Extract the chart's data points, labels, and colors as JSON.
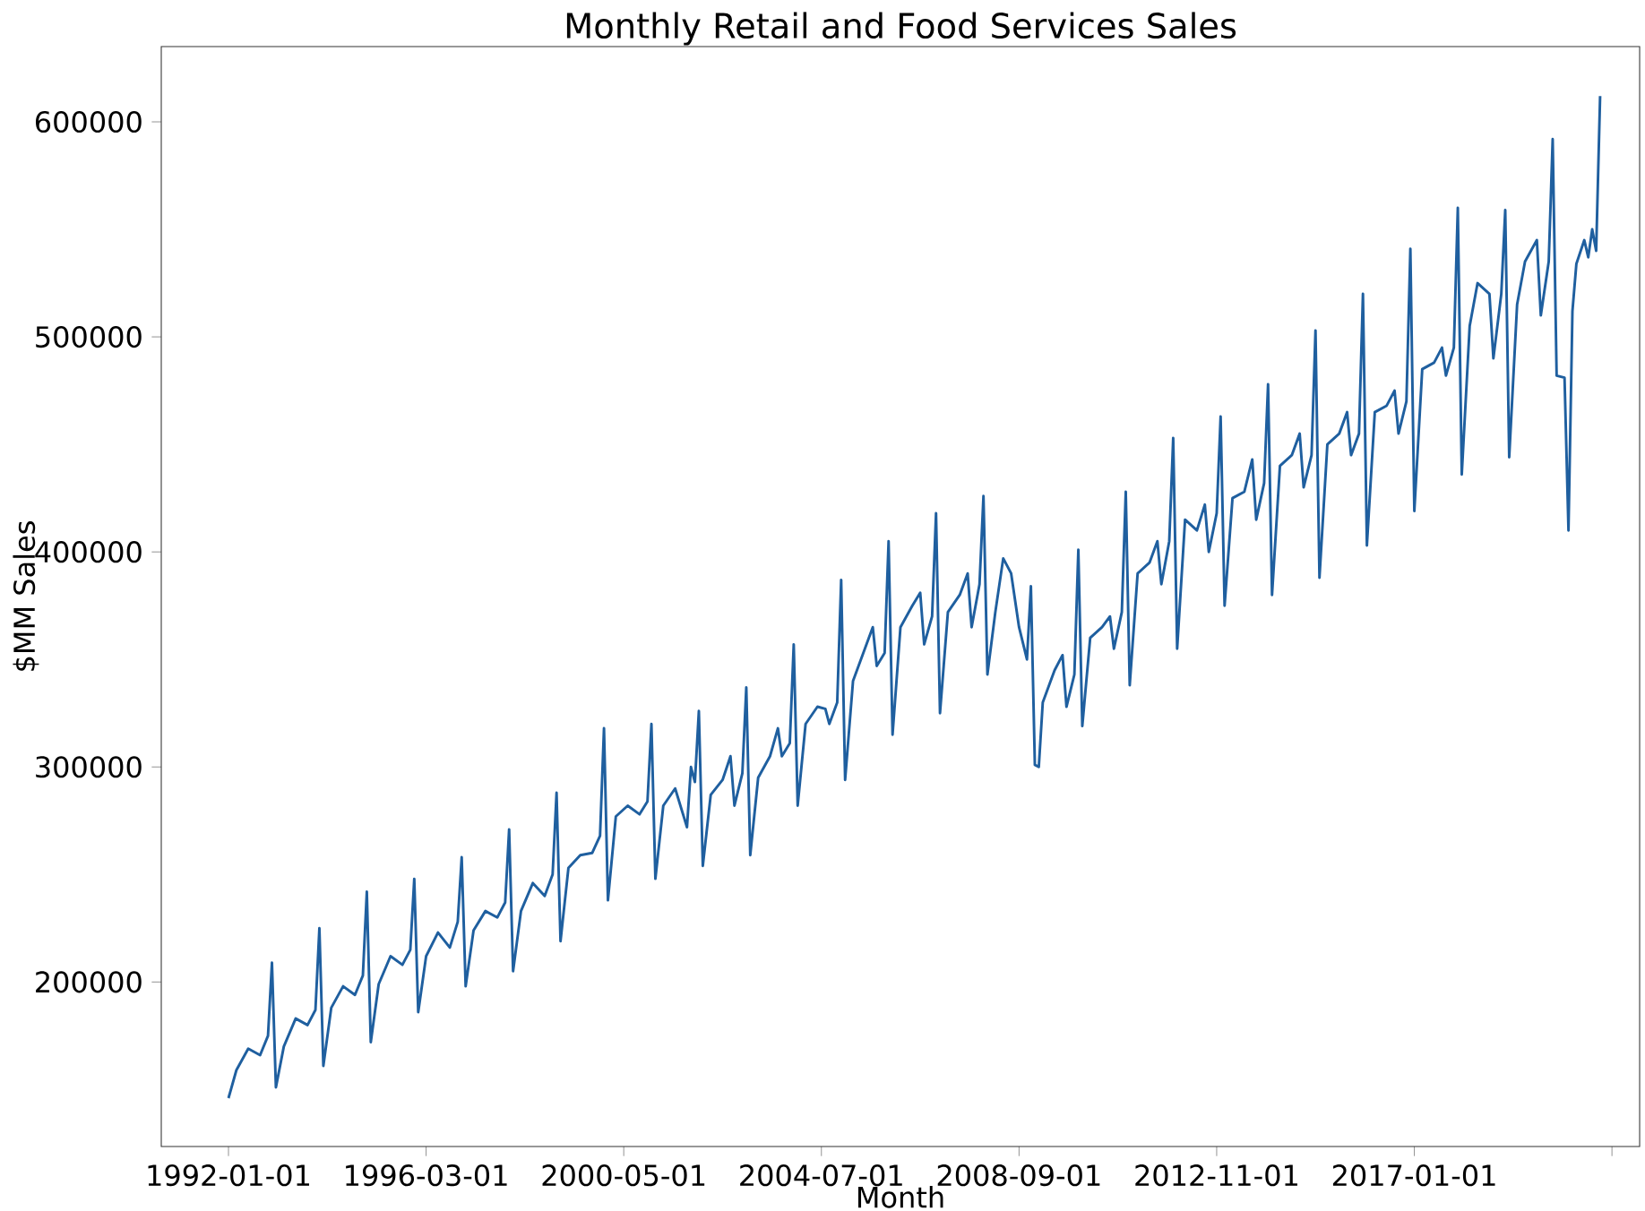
{
  "chart_data": {
    "type": "line",
    "title": "Monthly Retail and Food Services Sales",
    "xlabel": "Month",
    "ylabel": "$MM Sales",
    "x": [
      "1992-01",
      "1992-03",
      "1992-06",
      "1992-09",
      "1992-11",
      "1992-12",
      "1993-01",
      "1993-03",
      "1993-06",
      "1993-09",
      "1993-11",
      "1993-12",
      "1994-01",
      "1994-03",
      "1994-06",
      "1994-09",
      "1994-11",
      "1994-12",
      "1995-01",
      "1995-03",
      "1995-06",
      "1995-09",
      "1995-11",
      "1995-12",
      "1996-01",
      "1996-03",
      "1996-06",
      "1996-09",
      "1996-11",
      "1996-12",
      "1997-01",
      "1997-03",
      "1997-06",
      "1997-09",
      "1997-11",
      "1997-12",
      "1998-01",
      "1998-03",
      "1998-06",
      "1998-09",
      "1998-11",
      "1998-12",
      "1999-01",
      "1999-03",
      "1999-06",
      "1999-09",
      "1999-11",
      "1999-12",
      "2000-01",
      "2000-03",
      "2000-06",
      "2000-09",
      "2000-11",
      "2000-12",
      "2001-01",
      "2001-03",
      "2001-06",
      "2001-09",
      "2001-10",
      "2001-11",
      "2001-12",
      "2002-01",
      "2002-03",
      "2002-06",
      "2002-08",
      "2002-09",
      "2002-11",
      "2002-12",
      "2003-01",
      "2003-03",
      "2003-06",
      "2003-08",
      "2003-09",
      "2003-11",
      "2003-12",
      "2004-01",
      "2004-03",
      "2004-06",
      "2004-08",
      "2004-09",
      "2004-11",
      "2004-12",
      "2005-01",
      "2005-03",
      "2005-06",
      "2005-08",
      "2005-09",
      "2005-11",
      "2005-12",
      "2006-01",
      "2006-03",
      "2006-06",
      "2006-08",
      "2006-09",
      "2006-11",
      "2006-12",
      "2007-01",
      "2007-03",
      "2007-06",
      "2007-08",
      "2007-09",
      "2007-11",
      "2007-12",
      "2008-01",
      "2008-03",
      "2008-05",
      "2008-07",
      "2008-09",
      "2008-11",
      "2008-12",
      "2009-01",
      "2009-02",
      "2009-03",
      "2009-06",
      "2009-08",
      "2009-09",
      "2009-11",
      "2009-12",
      "2010-01",
      "2010-03",
      "2010-06",
      "2010-08",
      "2010-09",
      "2010-11",
      "2010-12",
      "2011-01",
      "2011-03",
      "2011-06",
      "2011-08",
      "2011-09",
      "2011-11",
      "2011-12",
      "2012-01",
      "2012-03",
      "2012-06",
      "2012-08",
      "2012-09",
      "2012-11",
      "2012-12",
      "2013-01",
      "2013-03",
      "2013-06",
      "2013-08",
      "2013-09",
      "2013-11",
      "2013-12",
      "2014-01",
      "2014-03",
      "2014-06",
      "2014-08",
      "2014-09",
      "2014-11",
      "2014-12",
      "2015-01",
      "2015-03",
      "2015-06",
      "2015-08",
      "2015-09",
      "2015-11",
      "2015-12",
      "2016-01",
      "2016-03",
      "2016-06",
      "2016-08",
      "2016-09",
      "2016-11",
      "2016-12",
      "2017-01",
      "2017-03",
      "2017-06",
      "2017-08",
      "2017-09",
      "2017-11",
      "2017-12",
      "2018-01",
      "2018-03",
      "2018-05",
      "2018-08",
      "2018-09",
      "2018-11",
      "2018-12",
      "2019-01",
      "2019-03",
      "2019-05",
      "2019-08",
      "2019-09",
      "2019-11",
      "2019-12",
      "2020-01",
      "2020-03",
      "2020-04",
      "2020-05",
      "2020-06",
      "2020-08",
      "2020-09",
      "2020-10",
      "2020-11",
      "2020-12"
    ],
    "series": [
      {
        "color": "#1f5f9f",
        "values": [
          146000,
          159000,
          169000,
          166000,
          175000,
          209000,
          151000,
          170000,
          183000,
          180000,
          187000,
          225000,
          161000,
          188000,
          198000,
          194000,
          203000,
          242000,
          172000,
          199000,
          212000,
          208000,
          215000,
          248000,
          186000,
          212000,
          223000,
          216000,
          228000,
          258000,
          198000,
          224000,
          233000,
          230000,
          237000,
          271000,
          205000,
          233000,
          246000,
          240000,
          250000,
          288000,
          219000,
          253000,
          259000,
          260000,
          268000,
          318000,
          238000,
          277000,
          282000,
          278000,
          284000,
          320000,
          248000,
          282000,
          290000,
          272000,
          300000,
          293000,
          326000,
          254000,
          287000,
          294000,
          305000,
          282000,
          297000,
          337000,
          259000,
          295000,
          305000,
          318000,
          305000,
          311000,
          357000,
          282000,
          320000,
          328000,
          327000,
          320000,
          330000,
          387000,
          294000,
          340000,
          355000,
          365000,
          347000,
          353000,
          405000,
          315000,
          365000,
          375000,
          381000,
          357000,
          370000,
          418000,
          325000,
          372000,
          380000,
          390000,
          365000,
          385000,
          426000,
          343000,
          372000,
          397000,
          390000,
          365000,
          350000,
          384000,
          301000,
          300000,
          330000,
          345000,
          352000,
          328000,
          343000,
          401000,
          319000,
          360000,
          365000,
          370000,
          355000,
          372000,
          428000,
          338000,
          390000,
          395000,
          405000,
          385000,
          405000,
          453000,
          355000,
          415000,
          410000,
          422000,
          400000,
          418000,
          463000,
          375000,
          425000,
          428000,
          443000,
          415000,
          432000,
          478000,
          380000,
          440000,
          445000,
          455000,
          430000,
          445000,
          503000,
          388000,
          450000,
          455000,
          465000,
          445000,
          455000,
          520000,
          403000,
          465000,
          468000,
          475000,
          455000,
          470000,
          541000,
          419000,
          485000,
          488000,
          495000,
          482000,
          495000,
          560000,
          436000,
          505000,
          525000,
          520000,
          490000,
          520000,
          559000,
          444000,
          515000,
          535000,
          545000,
          510000,
          535000,
          592000,
          482000,
          481000,
          410000,
          512000,
          534000,
          545000,
          537000,
          550000,
          540000,
          612000
        ]
      }
    ],
    "xlim": [
      "1990-08",
      "2021-10"
    ],
    "xticks": [
      {
        "value": "1992-01",
        "label": "1992-01-01"
      },
      {
        "value": "1996-03",
        "label": "1996-03-01"
      },
      {
        "value": "2000-05",
        "label": "2000-05-01"
      },
      {
        "value": "2004-07",
        "label": "2004-07-01"
      },
      {
        "value": "2008-09",
        "label": "2008-09-01"
      },
      {
        "value": "2012-11",
        "label": "2012-11-01"
      },
      {
        "value": "2017-01",
        "label": "2017-01-01"
      },
      {
        "value": "2021-03",
        "label": null
      }
    ],
    "ylim": [
      123500,
      635000
    ],
    "yticks": [
      200000,
      300000,
      400000,
      500000,
      600000
    ]
  }
}
